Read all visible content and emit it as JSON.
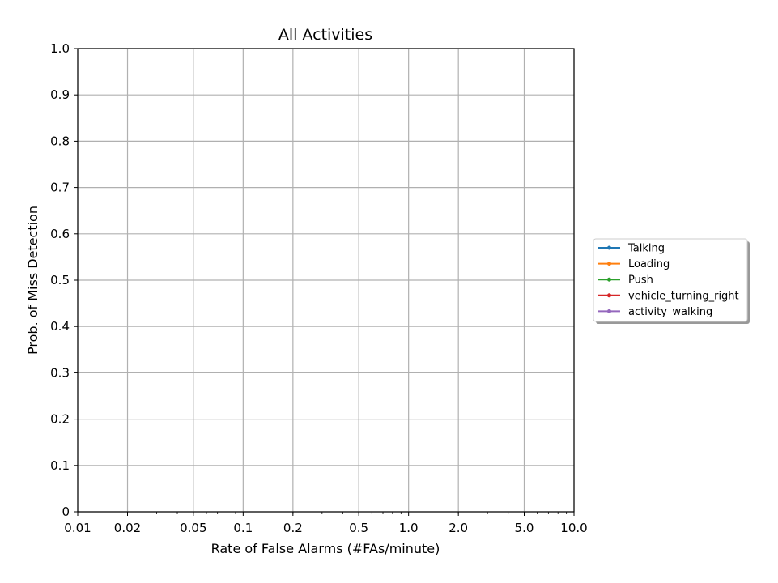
{
  "chart_data": {
    "type": "line",
    "title": "All Activities",
    "xlabel": "Rate of False Alarms (#FAs/minute)",
    "ylabel": "Prob. of Miss Detection",
    "x_scale": "log",
    "xlim": [
      0.01,
      10.0
    ],
    "ylim": [
      0,
      1.0
    ],
    "x_ticks": [
      0.01,
      0.02,
      0.05,
      0.1,
      0.2,
      0.5,
      1.0,
      2.0,
      5.0,
      10.0
    ],
    "x_tick_labels": [
      "0.01",
      "0.02",
      "0.05",
      "0.1",
      "0.2",
      "0.5",
      "1.0",
      "2.0",
      "5.0",
      "10.0"
    ],
    "y_ticks": [
      0,
      0.1,
      0.2,
      0.3,
      0.4,
      0.5,
      0.6,
      0.7,
      0.8,
      0.9,
      1.0
    ],
    "y_tick_labels": [
      "0",
      "0.1",
      "0.2",
      "0.3",
      "0.4",
      "0.5",
      "0.6",
      "0.7",
      "0.8",
      "0.9",
      "1.0"
    ],
    "grid": true,
    "legend_position": "outside-right",
    "series": [
      {
        "name": "Talking",
        "color": "#1f77b4",
        "x": [],
        "y": []
      },
      {
        "name": "Loading",
        "color": "#ff7f0e",
        "x": [],
        "y": []
      },
      {
        "name": "Push",
        "color": "#2ca02c",
        "x": [],
        "y": []
      },
      {
        "name": "vehicle_turning_right",
        "color": "#d62728",
        "x": [],
        "y": []
      },
      {
        "name": "activity_walking",
        "color": "#9467bd",
        "x": [],
        "y": []
      }
    ]
  }
}
